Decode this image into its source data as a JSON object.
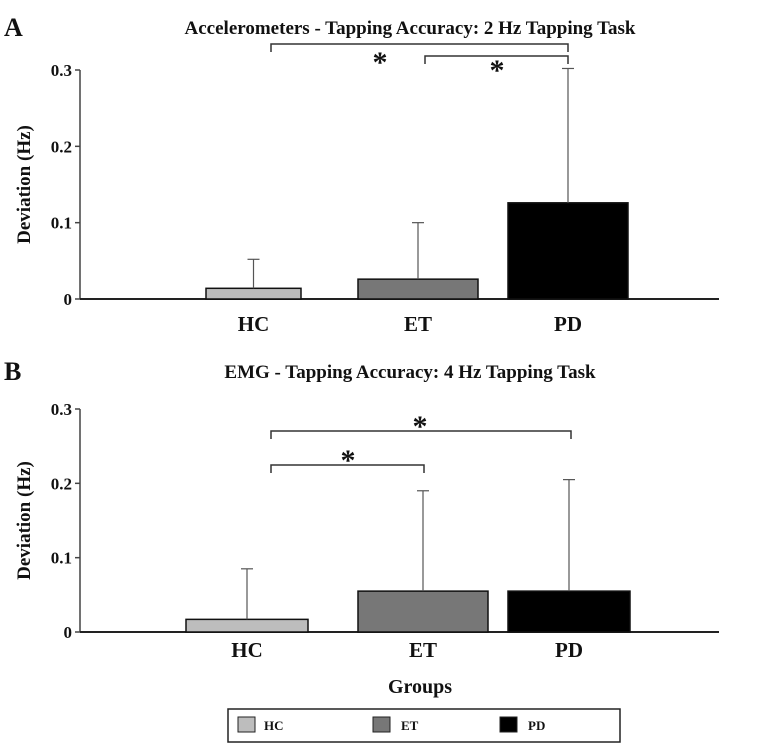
{
  "chart_data": [
    {
      "type": "bar",
      "panel": "A",
      "title": "Accelerometers - Tapping Accuracy: 2 Hz Tapping Task",
      "xlabel": "",
      "ylabel": "Deviation (Hz)",
      "categories": [
        "HC",
        "ET",
        "PD"
      ],
      "values": [
        0.014,
        0.026,
        0.126
      ],
      "error_upper": [
        0.052,
        0.1,
        0.302
      ],
      "ylim": [
        0,
        0.3
      ],
      "yticks": [
        "0",
        "0.1",
        "0.2",
        "0.3"
      ],
      "colors": [
        "#bdbdbd",
        "#777777",
        "#000000"
      ],
      "significance": [
        {
          "from": "HC",
          "to": "PD",
          "label": "*"
        },
        {
          "from": "ET",
          "to": "PD",
          "label": "*"
        }
      ]
    },
    {
      "type": "bar",
      "panel": "B",
      "title": "EMG - Tapping Accuracy: 4 Hz Tapping Task",
      "xlabel": "Groups",
      "ylabel": "Deviation (Hz)",
      "categories": [
        "HC",
        "ET",
        "PD"
      ],
      "values": [
        0.017,
        0.055,
        0.055
      ],
      "error_upper": [
        0.085,
        0.19,
        0.205
      ],
      "ylim": [
        0,
        0.3
      ],
      "yticks": [
        "0",
        "0.1",
        "0.2",
        "0.3"
      ],
      "colors": [
        "#bdbdbd",
        "#777777",
        "#000000"
      ],
      "significance": [
        {
          "from": "HC",
          "to": "PD",
          "label": "*"
        },
        {
          "from": "HC",
          "to": "ET",
          "label": "*"
        }
      ]
    }
  ],
  "legend": {
    "items": [
      {
        "label": "HC",
        "color": "#bdbdbd"
      },
      {
        "label": "ET",
        "color": "#777777"
      },
      {
        "label": "PD",
        "color": "#000000"
      }
    ]
  }
}
